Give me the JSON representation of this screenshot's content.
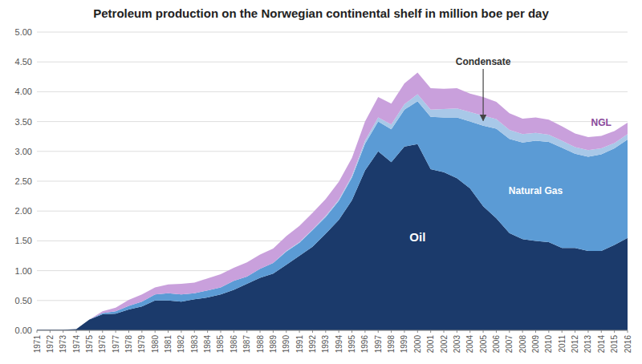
{
  "chart_data": {
    "type": "area",
    "stacked": true,
    "title": "Petroleum production on the Norwegian continental shelf in million boe per day",
    "x": [
      1971,
      1972,
      1973,
      1974,
      1975,
      1976,
      1977,
      1978,
      1979,
      1980,
      1981,
      1982,
      1983,
      1984,
      1985,
      1986,
      1987,
      1988,
      1989,
      1990,
      1991,
      1992,
      1993,
      1994,
      1995,
      1996,
      1997,
      1998,
      1999,
      2000,
      2001,
      2002,
      2003,
      2004,
      2005,
      2006,
      2007,
      2008,
      2009,
      2010,
      2011,
      2012,
      2013,
      2014,
      2015,
      2016
    ],
    "series": [
      {
        "name": "Oil",
        "color": "#1b3a6b",
        "values": [
          0.01,
          0.01,
          0.01,
          0.02,
          0.18,
          0.27,
          0.28,
          0.35,
          0.4,
          0.5,
          0.5,
          0.48,
          0.52,
          0.55,
          0.6,
          0.68,
          0.78,
          0.88,
          0.95,
          1.1,
          1.25,
          1.4,
          1.62,
          1.85,
          2.18,
          2.68,
          3.0,
          2.82,
          3.08,
          3.12,
          2.7,
          2.65,
          2.55,
          2.38,
          2.08,
          1.88,
          1.63,
          1.53,
          1.5,
          1.48,
          1.38,
          1.38,
          1.33,
          1.33,
          1.43,
          1.55
        ]
      },
      {
        "name": "Natural Gas",
        "color": "#5b9bd5",
        "values": [
          0.0,
          0.0,
          0.0,
          0.0,
          0.0,
          0.02,
          0.04,
          0.06,
          0.08,
          0.1,
          0.12,
          0.12,
          0.1,
          0.12,
          0.12,
          0.15,
          0.12,
          0.15,
          0.18,
          0.22,
          0.22,
          0.28,
          0.28,
          0.32,
          0.38,
          0.45,
          0.5,
          0.55,
          0.62,
          0.72,
          0.88,
          0.92,
          1.02,
          1.12,
          1.35,
          1.5,
          1.58,
          1.62,
          1.68,
          1.68,
          1.68,
          1.58,
          1.58,
          1.62,
          1.62,
          1.65
        ]
      },
      {
        "name": "Condensate",
        "color": "#a8c8e8",
        "values": [
          0.0,
          0.0,
          0.0,
          0.0,
          0.0,
          0.0,
          0.0,
          0.0,
          0.0,
          0.0,
          0.0,
          0.0,
          0.0,
          0.0,
          0.0,
          0.0,
          0.0,
          0.0,
          0.0,
          0.01,
          0.01,
          0.01,
          0.02,
          0.02,
          0.03,
          0.05,
          0.07,
          0.08,
          0.09,
          0.12,
          0.12,
          0.14,
          0.15,
          0.16,
          0.17,
          0.16,
          0.15,
          0.14,
          0.13,
          0.12,
          0.12,
          0.11,
          0.11,
          0.1,
          0.09,
          0.09
        ]
      },
      {
        "name": "NGL",
        "color": "#c9a0dc",
        "values": [
          0.0,
          0.0,
          0.0,
          0.0,
          0.0,
          0.03,
          0.06,
          0.1,
          0.12,
          0.12,
          0.15,
          0.18,
          0.18,
          0.2,
          0.22,
          0.22,
          0.24,
          0.24,
          0.24,
          0.25,
          0.27,
          0.28,
          0.28,
          0.3,
          0.3,
          0.32,
          0.34,
          0.35,
          0.35,
          0.36,
          0.36,
          0.34,
          0.34,
          0.31,
          0.31,
          0.29,
          0.28,
          0.26,
          0.26,
          0.25,
          0.24,
          0.23,
          0.22,
          0.21,
          0.2,
          0.19
        ]
      }
    ],
    "xlim": [
      1971,
      2016
    ],
    "xticks": [
      1971,
      1972,
      1973,
      1974,
      1975,
      1976,
      1977,
      1978,
      1979,
      1980,
      1981,
      1982,
      1983,
      1984,
      1985,
      1986,
      1987,
      1988,
      1989,
      1990,
      1991,
      1992,
      1993,
      1994,
      1995,
      1996,
      1997,
      1998,
      1999,
      2000,
      2001,
      2002,
      2003,
      2004,
      2005,
      2006,
      2007,
      2008,
      2009,
      2010,
      2011,
      2012,
      2013,
      2014,
      2015,
      2016
    ],
    "ylim": [
      0.0,
      5.0
    ],
    "yticks": [
      {
        "value": 0.0,
        "label": "0.00"
      },
      {
        "value": 0.5,
        "label": "0.50"
      },
      {
        "value": 1.0,
        "label": "1.00"
      },
      {
        "value": 1.5,
        "label": "1.50"
      },
      {
        "value": 2.0,
        "label": "2.00"
      },
      {
        "value": 2.5,
        "label": "2.50"
      },
      {
        "value": 3.0,
        "label": "3.00"
      },
      {
        "value": 3.5,
        "label": "3.50"
      },
      {
        "value": 4.0,
        "label": "4.00"
      },
      {
        "value": 4.5,
        "label": "4.50"
      },
      {
        "value": 5.0,
        "label": "5.00"
      }
    ],
    "grid": true
  }
}
